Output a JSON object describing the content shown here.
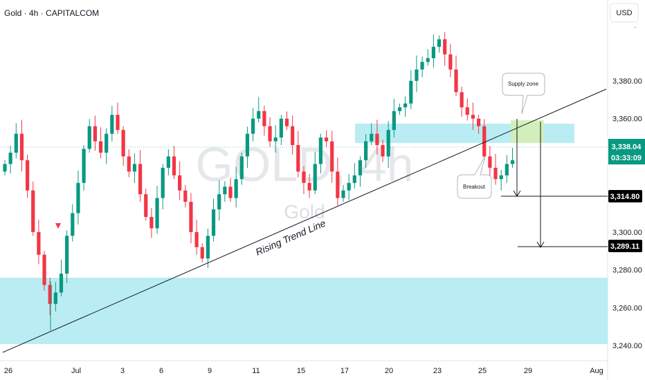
{
  "chart_title": "Gold · 4h · CAPITALCOM",
  "currency_button": "USD",
  "watermark": {
    "symbol": "GOLD, 4h",
    "name": "Gold"
  },
  "colors": {
    "up": "#089981",
    "down": "#f23645",
    "zone": "#b2ebf2",
    "supply": "#d4edb5",
    "price_tag": "#089981",
    "level_tag": "#000000"
  },
  "annotations": {
    "supply_zone": "Supply zone",
    "breakout": "Breakout",
    "trend_line": "Rising Trend Line"
  },
  "current_price": {
    "value": "3,338.04",
    "countdown": "03:33:09"
  },
  "target_levels": [
    "3,314.80",
    "3,289.11"
  ],
  "chart_data": {
    "type": "candlestick",
    "title": "Gold · 4h · CAPITALCOM",
    "ylim": [
      3240,
      3400
    ],
    "y_ticks": [
      "3,380.00",
      "3,360.00",
      "3,340.00",
      "3,320.00",
      "3,300.00",
      "3,280.00",
      "3,260.00",
      "3,240.00"
    ],
    "x_ticks": [
      "26",
      "Jul",
      "3",
      "6",
      "9",
      "11",
      "15",
      "17",
      "20",
      "23",
      "25",
      "29",
      "Aug"
    ],
    "grid": false,
    "demand_zone": [
      3238,
      3274
    ],
    "supply_zone": [
      3341,
      3350
    ],
    "trend_line": [
      [
        3240,
        3366
      ]
    ],
    "targets": [
      3314.8,
      3289.11
    ],
    "last_price": 3338.04,
    "anchors": [
      3336,
      3342,
      3352,
      3338,
      3322,
      3300,
      3288,
      3272,
      3262,
      3268,
      3278,
      3298,
      3310,
      3326,
      3344,
      3356,
      3348,
      3342,
      3352,
      3362,
      3354,
      3340,
      3332,
      3336,
      3320,
      3308,
      3302,
      3318,
      3334,
      3340,
      3330,
      3322,
      3316,
      3300,
      3292,
      3286,
      3298,
      3312,
      3320,
      3324,
      3318,
      3328,
      3340,
      3352,
      3360,
      3364,
      3356,
      3348,
      3350,
      3360,
      3356,
      3346,
      3332,
      3326,
      3322,
      3336,
      3350,
      3348,
      3332,
      3318,
      3322,
      3326,
      3330,
      3338,
      3348,
      3352,
      3346,
      3340,
      3354,
      3364,
      3366,
      3368,
      3380,
      3386,
      3390,
      3392,
      3398,
      3402,
      3394,
      3386,
      3374,
      3366,
      3362,
      3360,
      3356,
      3340,
      3334,
      3328,
      3330,
      3336,
      3338
    ]
  }
}
